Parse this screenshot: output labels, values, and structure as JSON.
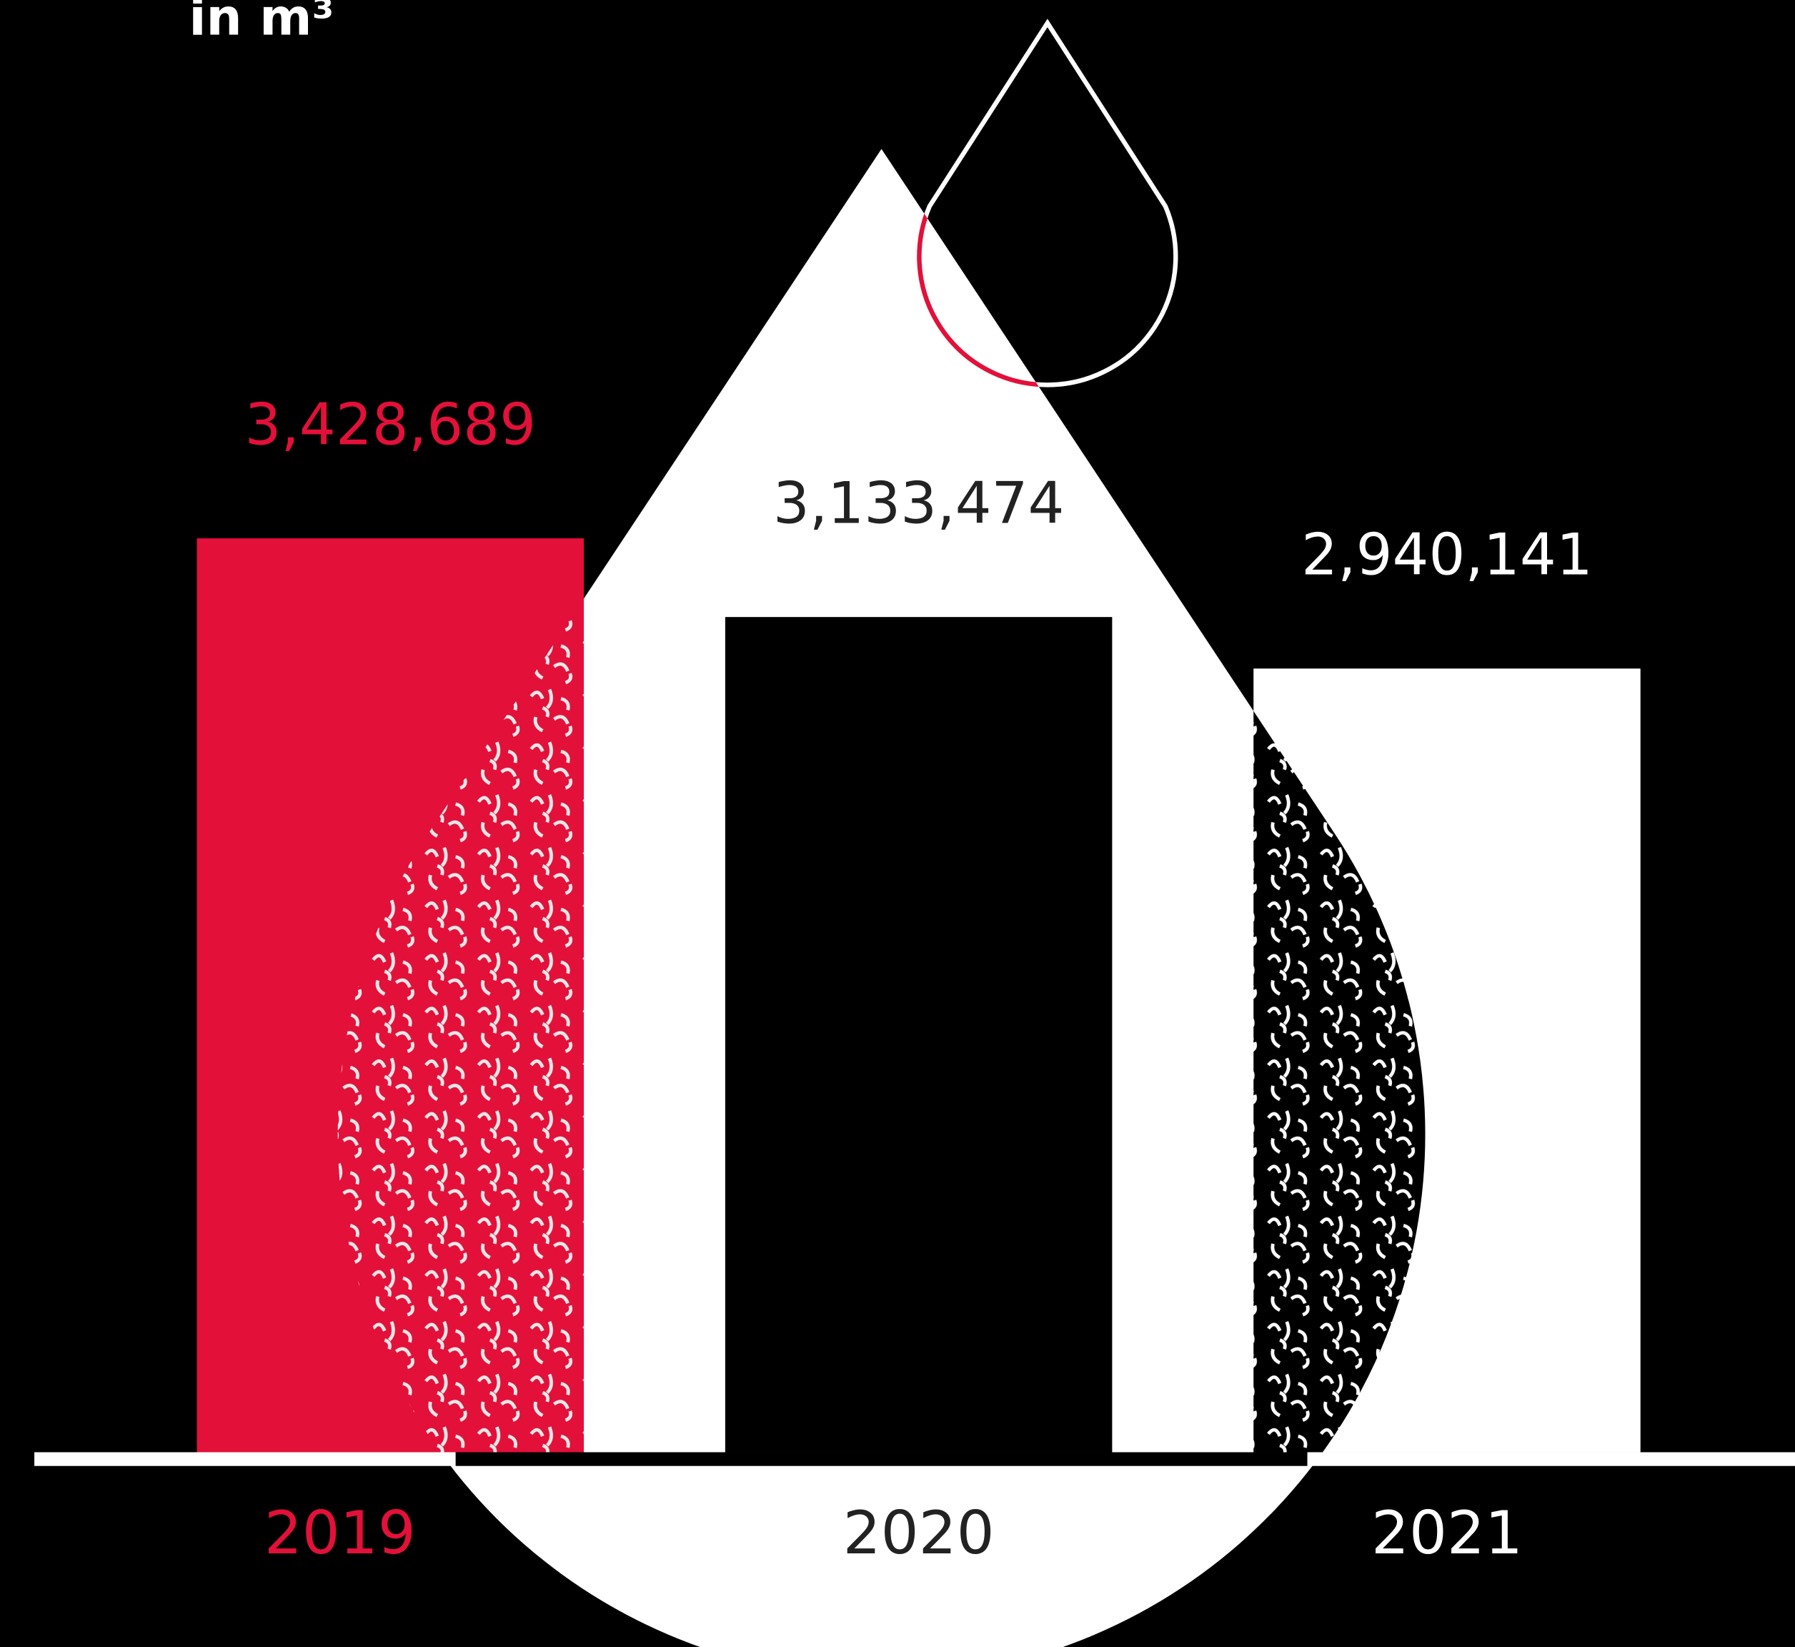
{
  "chart_data": {
    "type": "bar",
    "title": "in m³",
    "categories": [
      "2019",
      "2020",
      "2021"
    ],
    "values": [
      3428689,
      3133474,
      2940141
    ],
    "value_labels": [
      "3,428,689",
      "3,133,474",
      "2,940,141"
    ],
    "colors": [
      "#e31039",
      "#000000",
      "#ffffff"
    ]
  }
}
